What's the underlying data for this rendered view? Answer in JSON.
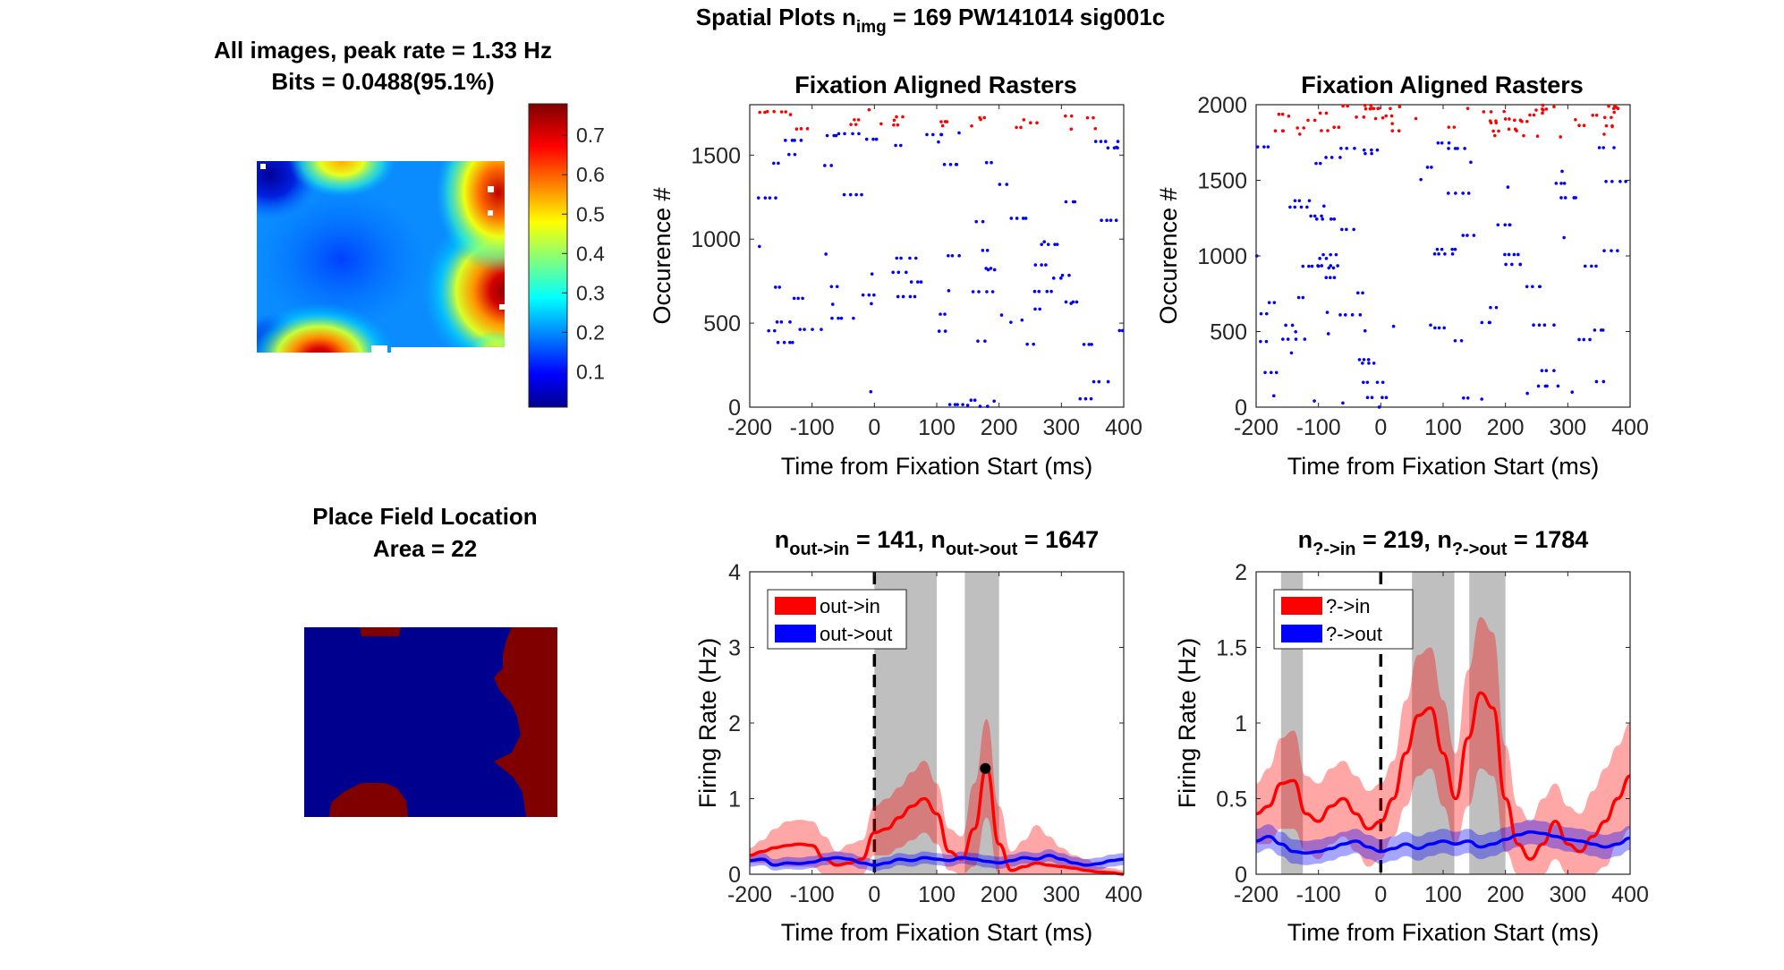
{
  "figure": {
    "suptitle": {
      "prefix": "Spatial Plots n",
      "sub": "img",
      "suffix": " = 169  PW141014 sig001c"
    }
  },
  "colors": {
    "in": "#ff0000",
    "out": "#0000ff",
    "shade": "#bfbfbf",
    "heat_low": "#00008f",
    "heat_high": "#800000"
  },
  "chart_data": [
    {
      "id": "heatmap",
      "type": "heatmap",
      "title_line1": "All images, peak rate = 1.33 Hz",
      "title_line2": "Bits = 0.0488(95.1%)",
      "colorbar": {
        "ticks": [
          "0.1",
          "0.2",
          "0.3",
          "0.4",
          "0.5",
          "0.6",
          "0.7"
        ],
        "range": [
          0.01,
          0.78
        ],
        "colormap": "jet"
      },
      "hot_spots": [
        {
          "location": "bottom-center",
          "peak": 0.78
        },
        {
          "location": "right-middle",
          "peak": 0.78
        },
        {
          "location": "top-right",
          "peak": 0.7
        },
        {
          "location": "top-center",
          "peak": 0.5
        },
        {
          "location": "top-left",
          "peak": 0.05
        }
      ]
    },
    {
      "id": "placefield",
      "type": "heatmap",
      "title_line1": "Place Field Location",
      "title_line2": "Area = 22",
      "regions": [
        "in-field (red)",
        "out-of-field (blue)"
      ]
    },
    {
      "id": "raster1",
      "type": "scatter",
      "title": "Fixation Aligned Rasters",
      "xlabel": "Time from Fixation Start (ms)",
      "ylabel": "Occurence #",
      "xlim": [
        -200,
        400
      ],
      "ylim": [
        0,
        1800
      ],
      "xticks": [
        "-200",
        "-100",
        "0",
        "100",
        "200",
        "300",
        "400"
      ],
      "yticks": [
        "0",
        "500",
        "1000",
        "1500"
      ],
      "series": [
        {
          "name": "",
          "color": "red",
          "y_range": [
            1650,
            1800
          ],
          "approx_count": 40
        },
        {
          "name": "",
          "color": "blue",
          "y_range": [
            0,
            1647
          ],
          "approx_count": 180
        }
      ]
    },
    {
      "id": "raster2",
      "type": "scatter",
      "title": "Fixation Aligned Rasters",
      "xlabel": "Time from Fixation Start (ms)",
      "ylabel": "Occurence #",
      "xlim": [
        -200,
        400
      ],
      "ylim": [
        0,
        2000
      ],
      "xticks": [
        "-200",
        "-100",
        "0",
        "100",
        "200",
        "300",
        "400"
      ],
      "yticks": [
        "0",
        "500",
        "1000",
        "1500",
        "2000"
      ],
      "series": [
        {
          "name": "",
          "color": "red",
          "y_range": [
            1785,
            2000
          ],
          "approx_count": 90
        },
        {
          "name": "",
          "color": "blue",
          "y_range": [
            0,
            1784
          ],
          "approx_count": 200
        }
      ]
    },
    {
      "id": "psth1",
      "type": "line",
      "title": {
        "a": "n",
        "a_sub": "out->in",
        "b": " = 141, n",
        "b_sub": "out->out",
        "c": " = 1647"
      },
      "xlabel": "Time from Fixation Start (ms)",
      "ylabel": "Firing Rate (Hz)",
      "xlim": [
        -200,
        400
      ],
      "ylim": [
        0,
        4
      ],
      "xticks": [
        "-200",
        "-100",
        "0",
        "100",
        "200",
        "300",
        "400"
      ],
      "yticks": [
        "0",
        "1",
        "2",
        "3",
        "4"
      ],
      "shaded_windows": [
        [
          0,
          100
        ],
        [
          145,
          200
        ]
      ],
      "peak_marker": {
        "x": 178,
        "y": 1.4
      },
      "x": [
        -200,
        -180,
        -160,
        -140,
        -120,
        -100,
        -80,
        -60,
        -40,
        -20,
        0,
        20,
        40,
        60,
        80,
        100,
        120,
        140,
        160,
        180,
        200,
        220,
        240,
        260,
        280,
        300,
        320,
        340,
        360,
        380,
        400
      ],
      "series": [
        {
          "name": "out->in",
          "color": "red",
          "mean": [
            0.25,
            0.3,
            0.35,
            0.38,
            0.4,
            0.38,
            0.2,
            0.12,
            0.15,
            0.2,
            0.55,
            0.6,
            0.75,
            0.9,
            1.0,
            0.8,
            0.3,
            0.2,
            0.6,
            1.4,
            0.4,
            0.05,
            0.1,
            0.15,
            0.12,
            0.1,
            0.08,
            0.05,
            0.03,
            0.02,
            0.0
          ],
          "upper": [
            0.35,
            0.45,
            0.6,
            0.7,
            0.72,
            0.7,
            0.5,
            0.3,
            0.4,
            0.45,
            0.9,
            1.0,
            1.15,
            1.35,
            1.5,
            1.2,
            0.6,
            0.5,
            1.2,
            2.05,
            0.9,
            0.3,
            0.45,
            0.65,
            0.5,
            0.35,
            0.25,
            0.2,
            0.1,
            0.08,
            0.05
          ],
          "lower": [
            0.15,
            0.15,
            0.12,
            0.1,
            0.1,
            0.1,
            0.0,
            0.0,
            0.0,
            0.0,
            0.25,
            0.25,
            0.35,
            0.45,
            0.55,
            0.4,
            0.05,
            0.0,
            0.1,
            0.75,
            0.0,
            0.0,
            0.0,
            0.0,
            0.0,
            0.0,
            0.0,
            0.0,
            0.0,
            0.0,
            0.0
          ]
        },
        {
          "name": "out->out",
          "color": "blue",
          "mean": [
            0.18,
            0.2,
            0.12,
            0.15,
            0.14,
            0.16,
            0.2,
            0.22,
            0.2,
            0.15,
            0.12,
            0.15,
            0.2,
            0.18,
            0.22,
            0.2,
            0.18,
            0.22,
            0.2,
            0.17,
            0.15,
            0.18,
            0.22,
            0.2,
            0.25,
            0.2,
            0.15,
            0.12,
            0.14,
            0.18,
            0.2
          ],
          "upper": [
            0.26,
            0.28,
            0.2,
            0.23,
            0.22,
            0.24,
            0.28,
            0.3,
            0.28,
            0.23,
            0.2,
            0.23,
            0.28,
            0.26,
            0.3,
            0.28,
            0.26,
            0.3,
            0.28,
            0.25,
            0.23,
            0.26,
            0.3,
            0.28,
            0.33,
            0.28,
            0.23,
            0.2,
            0.22,
            0.26,
            0.28
          ],
          "lower": [
            0.1,
            0.12,
            0.05,
            0.07,
            0.06,
            0.08,
            0.12,
            0.14,
            0.12,
            0.07,
            0.04,
            0.07,
            0.12,
            0.1,
            0.14,
            0.12,
            0.1,
            0.14,
            0.12,
            0.09,
            0.07,
            0.1,
            0.14,
            0.12,
            0.17,
            0.12,
            0.07,
            0.04,
            0.06,
            0.1,
            0.12
          ]
        }
      ],
      "legend": "top-left"
    },
    {
      "id": "psth2",
      "type": "line",
      "title": {
        "a": "n",
        "a_sub": "?->in",
        "b": " = 219, n",
        "b_sub": "?->out",
        "c": " = 1784"
      },
      "xlabel": "Time from Fixation Start (ms)",
      "ylabel": "Firing Rate (Hz)",
      "xlim": [
        -200,
        400
      ],
      "ylim": [
        0,
        2
      ],
      "xticks": [
        "-200",
        "-100",
        "0",
        "100",
        "200",
        "300",
        "400"
      ],
      "yticks": [
        "0",
        "0.5",
        "1",
        "1.5",
        "2"
      ],
      "shaded_windows": [
        [
          -160,
          -125
        ],
        [
          50,
          118
        ],
        [
          142,
          200
        ]
      ],
      "x": [
        -200,
        -180,
        -160,
        -140,
        -120,
        -100,
        -80,
        -60,
        -40,
        -20,
        0,
        20,
        40,
        60,
        80,
        100,
        120,
        140,
        160,
        180,
        200,
        220,
        240,
        260,
        280,
        300,
        320,
        340,
        360,
        380,
        400
      ],
      "series": [
        {
          "name": "?->in",
          "color": "red",
          "mean": [
            0.4,
            0.45,
            0.6,
            0.62,
            0.4,
            0.35,
            0.45,
            0.5,
            0.4,
            0.3,
            0.35,
            0.5,
            0.8,
            1.05,
            1.1,
            0.8,
            0.5,
            0.9,
            1.2,
            1.1,
            0.5,
            0.2,
            0.1,
            0.2,
            0.35,
            0.2,
            0.15,
            0.25,
            0.35,
            0.5,
            0.65
          ],
          "upper": [
            0.6,
            0.7,
            0.9,
            0.95,
            0.65,
            0.6,
            0.7,
            0.75,
            0.65,
            0.55,
            0.6,
            0.75,
            1.15,
            1.45,
            1.5,
            1.15,
            0.8,
            1.35,
            1.7,
            1.6,
            0.85,
            0.45,
            0.35,
            0.5,
            0.6,
            0.45,
            0.4,
            0.55,
            0.7,
            0.85,
            1.0
          ],
          "lower": [
            0.2,
            0.2,
            0.3,
            0.3,
            0.15,
            0.1,
            0.2,
            0.25,
            0.15,
            0.05,
            0.1,
            0.25,
            0.45,
            0.65,
            0.7,
            0.45,
            0.2,
            0.45,
            0.7,
            0.65,
            0.15,
            0.0,
            0.0,
            0.0,
            0.1,
            0.0,
            0.0,
            0.0,
            0.05,
            0.2,
            0.3
          ]
        },
        {
          "name": "?->out",
          "color": "blue",
          "mean": [
            0.22,
            0.25,
            0.2,
            0.15,
            0.14,
            0.15,
            0.17,
            0.2,
            0.22,
            0.18,
            0.15,
            0.17,
            0.2,
            0.17,
            0.2,
            0.22,
            0.2,
            0.22,
            0.18,
            0.2,
            0.23,
            0.26,
            0.28,
            0.27,
            0.25,
            0.23,
            0.22,
            0.2,
            0.18,
            0.2,
            0.24
          ],
          "upper": [
            0.3,
            0.33,
            0.28,
            0.23,
            0.22,
            0.23,
            0.25,
            0.28,
            0.3,
            0.26,
            0.23,
            0.25,
            0.28,
            0.25,
            0.28,
            0.3,
            0.28,
            0.3,
            0.26,
            0.28,
            0.31,
            0.34,
            0.36,
            0.35,
            0.33,
            0.31,
            0.3,
            0.28,
            0.26,
            0.28,
            0.32
          ],
          "lower": [
            0.14,
            0.17,
            0.12,
            0.07,
            0.06,
            0.07,
            0.09,
            0.12,
            0.14,
            0.1,
            0.07,
            0.09,
            0.12,
            0.09,
            0.12,
            0.14,
            0.12,
            0.14,
            0.1,
            0.12,
            0.15,
            0.18,
            0.2,
            0.19,
            0.17,
            0.15,
            0.14,
            0.12,
            0.1,
            0.12,
            0.16
          ]
        }
      ],
      "legend": "top-left"
    }
  ]
}
